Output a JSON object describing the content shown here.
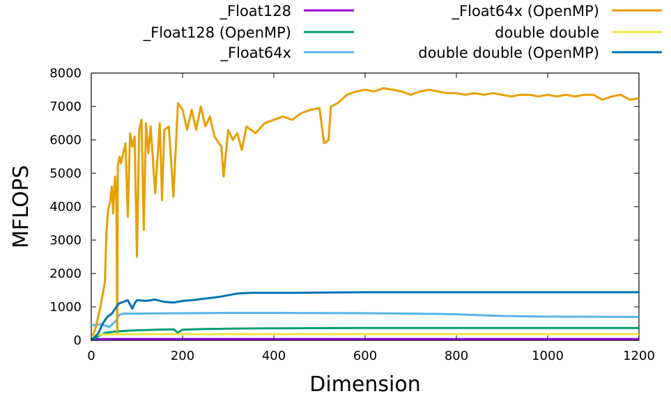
{
  "chart_data": {
    "type": "line",
    "title": "",
    "xlabel": "Dimension",
    "ylabel": "MFLOPS",
    "xlim": [
      0,
      1200
    ],
    "ylim": [
      0,
      8000
    ],
    "xticks": [
      "0",
      "200",
      "400",
      "600",
      "800",
      "1000",
      "1200"
    ],
    "yticks": [
      "0",
      "1000",
      "2000",
      "3000",
      "4000",
      "5000",
      "6000",
      "7000",
      "8000"
    ],
    "grid": false,
    "legend_position": "top",
    "series": [
      {
        "name": "_Float128",
        "color": "#9400d3",
        "points": [
          [
            0,
            20
          ],
          [
            10,
            40
          ],
          [
            30,
            40
          ],
          [
            100,
            40
          ],
          [
            200,
            40
          ],
          [
            400,
            40
          ],
          [
            600,
            40
          ],
          [
            800,
            40
          ],
          [
            1000,
            40
          ],
          [
            1200,
            40
          ]
        ]
      },
      {
        "name": "_Float128 (OpenMP)",
        "color": "#009e73",
        "points": [
          [
            0,
            0
          ],
          [
            15,
            120
          ],
          [
            30,
            220
          ],
          [
            50,
            260
          ],
          [
            80,
            290
          ],
          [
            100,
            300
          ],
          [
            150,
            320
          ],
          [
            180,
            330
          ],
          [
            190,
            230
          ],
          [
            200,
            320
          ],
          [
            250,
            340
          ],
          [
            300,
            350
          ],
          [
            400,
            360
          ],
          [
            600,
            370
          ],
          [
            800,
            370
          ],
          [
            1000,
            370
          ],
          [
            1200,
            370
          ]
        ]
      },
      {
        "name": "_Float64x",
        "color": "#56b4e9",
        "points": [
          [
            0,
            450
          ],
          [
            20,
            480
          ],
          [
            40,
            400
          ],
          [
            55,
            600
          ],
          [
            60,
            750
          ],
          [
            70,
            800
          ],
          [
            100,
            800
          ],
          [
            200,
            810
          ],
          [
            300,
            820
          ],
          [
            400,
            820
          ],
          [
            600,
            810
          ],
          [
            700,
            800
          ],
          [
            800,
            780
          ],
          [
            900,
            730
          ],
          [
            1000,
            710
          ],
          [
            1200,
            700
          ]
        ]
      },
      {
        "name": "_Float64x (OpenMP)",
        "color": "#e69f00",
        "points": [
          [
            0,
            0
          ],
          [
            10,
            400
          ],
          [
            20,
            1000
          ],
          [
            28,
            1600
          ],
          [
            30,
            1800
          ],
          [
            33,
            3200
          ],
          [
            37,
            3900
          ],
          [
            42,
            4200
          ],
          [
            45,
            4600
          ],
          [
            48,
            3800
          ],
          [
            52,
            4900
          ],
          [
            55,
            4300
          ],
          [
            57,
            200
          ],
          [
            58,
            5200
          ],
          [
            62,
            5500
          ],
          [
            65,
            5300
          ],
          [
            70,
            5600
          ],
          [
            75,
            5900
          ],
          [
            80,
            3700
          ],
          [
            85,
            6200
          ],
          [
            90,
            5800
          ],
          [
            95,
            6100
          ],
          [
            100,
            2500
          ],
          [
            105,
            6300
          ],
          [
            110,
            6600
          ],
          [
            115,
            3300
          ],
          [
            120,
            6500
          ],
          [
            125,
            5600
          ],
          [
            130,
            6400
          ],
          [
            140,
            4400
          ],
          [
            150,
            6500
          ],
          [
            155,
            4200
          ],
          [
            160,
            6300
          ],
          [
            170,
            6400
          ],
          [
            180,
            4300
          ],
          [
            190,
            7100
          ],
          [
            200,
            6900
          ],
          [
            210,
            6300
          ],
          [
            220,
            6900
          ],
          [
            230,
            6300
          ],
          [
            240,
            7000
          ],
          [
            250,
            6400
          ],
          [
            260,
            6700
          ],
          [
            270,
            6100
          ],
          [
            280,
            5900
          ],
          [
            285,
            5800
          ],
          [
            290,
            4900
          ],
          [
            300,
            6300
          ],
          [
            310,
            6000
          ],
          [
            320,
            6200
          ],
          [
            330,
            5700
          ],
          [
            340,
            6400
          ],
          [
            350,
            6300
          ],
          [
            360,
            6200
          ],
          [
            380,
            6500
          ],
          [
            400,
            6600
          ],
          [
            420,
            6700
          ],
          [
            440,
            6600
          ],
          [
            460,
            6800
          ],
          [
            480,
            6900
          ],
          [
            500,
            6950
          ],
          [
            510,
            5900
          ],
          [
            520,
            6000
          ],
          [
            525,
            7000
          ],
          [
            540,
            7100
          ],
          [
            560,
            7350
          ],
          [
            580,
            7450
          ],
          [
            600,
            7500
          ],
          [
            620,
            7450
          ],
          [
            640,
            7550
          ],
          [
            660,
            7500
          ],
          [
            680,
            7450
          ],
          [
            700,
            7350
          ],
          [
            720,
            7450
          ],
          [
            740,
            7500
          ],
          [
            760,
            7450
          ],
          [
            780,
            7400
          ],
          [
            800,
            7400
          ],
          [
            820,
            7350
          ],
          [
            840,
            7400
          ],
          [
            860,
            7350
          ],
          [
            880,
            7400
          ],
          [
            900,
            7350
          ],
          [
            920,
            7300
          ],
          [
            940,
            7350
          ],
          [
            960,
            7350
          ],
          [
            980,
            7300
          ],
          [
            1000,
            7350
          ],
          [
            1020,
            7300
          ],
          [
            1040,
            7350
          ],
          [
            1060,
            7300
          ],
          [
            1080,
            7350
          ],
          [
            1100,
            7350
          ],
          [
            1120,
            7200
          ],
          [
            1140,
            7300
          ],
          [
            1160,
            7350
          ],
          [
            1180,
            7200
          ],
          [
            1200,
            7250
          ]
        ]
      },
      {
        "name": "double double",
        "color": "#f0e442",
        "points": [
          [
            0,
            100
          ],
          [
            10,
            150
          ],
          [
            20,
            170
          ],
          [
            50,
            180
          ],
          [
            100,
            185
          ],
          [
            200,
            185
          ],
          [
            400,
            185
          ],
          [
            600,
            185
          ],
          [
            800,
            185
          ],
          [
            1000,
            185
          ],
          [
            1200,
            185
          ]
        ]
      },
      {
        "name": "double double (OpenMP)",
        "color": "#0072b2",
        "points": [
          [
            0,
            0
          ],
          [
            15,
            200
          ],
          [
            25,
            500
          ],
          [
            35,
            700
          ],
          [
            45,
            800
          ],
          [
            50,
            900
          ],
          [
            55,
            1000
          ],
          [
            60,
            1100
          ],
          [
            70,
            1150
          ],
          [
            80,
            1200
          ],
          [
            90,
            950
          ],
          [
            95,
            1100
          ],
          [
            100,
            1200
          ],
          [
            120,
            1180
          ],
          [
            140,
            1220
          ],
          [
            160,
            1150
          ],
          [
            180,
            1130
          ],
          [
            200,
            1180
          ],
          [
            220,
            1200
          ],
          [
            250,
            1250
          ],
          [
            280,
            1300
          ],
          [
            300,
            1350
          ],
          [
            320,
            1400
          ],
          [
            350,
            1420
          ],
          [
            400,
            1420
          ],
          [
            450,
            1420
          ],
          [
            500,
            1430
          ],
          [
            600,
            1440
          ],
          [
            700,
            1440
          ],
          [
            800,
            1440
          ],
          [
            900,
            1440
          ],
          [
            1000,
            1440
          ],
          [
            1100,
            1440
          ],
          [
            1200,
            1440
          ]
        ]
      }
    ]
  }
}
